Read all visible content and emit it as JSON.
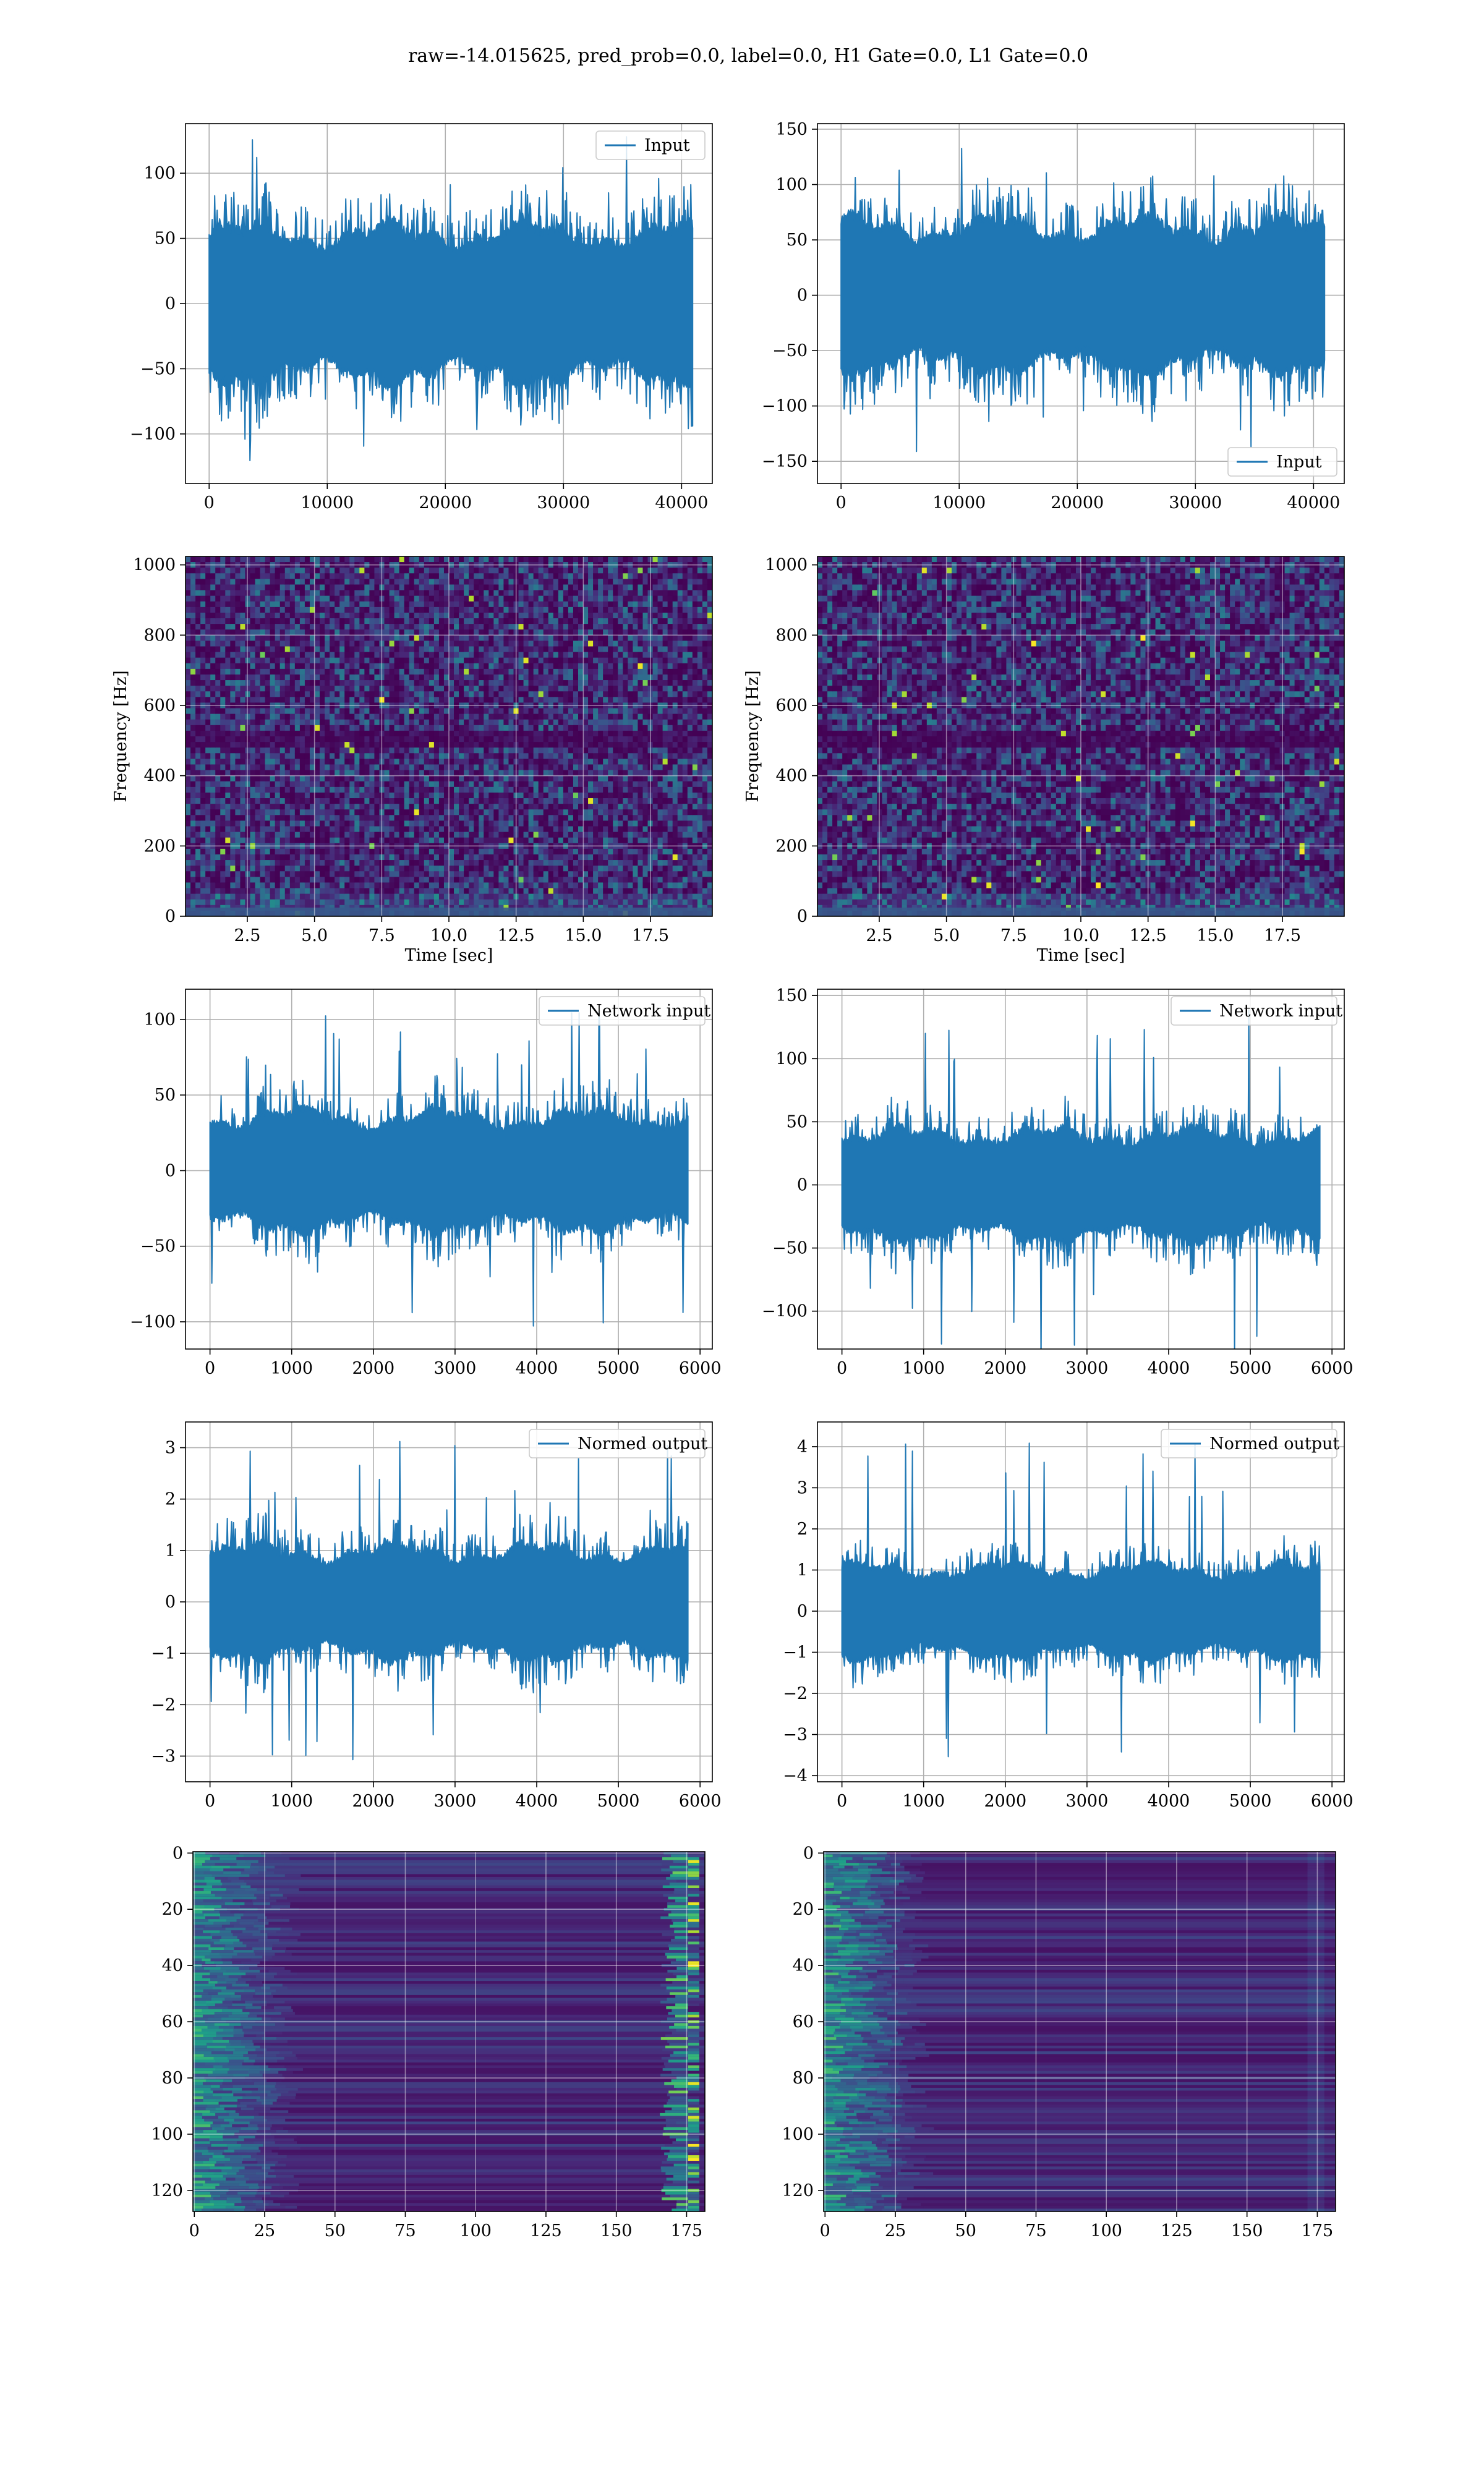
{
  "figure": {
    "title": "raw=-14.015625, pred_prob=0.0, label=0.0, H1 Gate=0.0, L1 Gate=0.0",
    "line_color": "#1f77b4"
  },
  "chart_data": [
    {
      "id": "r0c0",
      "type": "line",
      "series": [
        {
          "name": "Input"
        }
      ],
      "legend": "top-right",
      "xlim": [
        -2000,
        42600
      ],
      "ylim": [
        -138,
        138
      ],
      "xticks": [
        0,
        10000,
        20000,
        30000,
        40000
      ],
      "xtick_labels": [
        "0",
        "10000",
        "20000",
        "30000",
        "40000"
      ],
      "yticks": [
        -100,
        -50,
        0,
        50,
        100
      ],
      "ytick_labels": [
        "−100",
        "−50",
        "0",
        "50",
        "100"
      ],
      "x_start": 0,
      "x_end": 40959,
      "core_amp": 68,
      "peak_amp": 128,
      "grid": true,
      "xlabel": "",
      "ylabel": ""
    },
    {
      "id": "r0c1",
      "type": "line",
      "series": [
        {
          "name": "Input"
        }
      ],
      "legend": "bottom-right",
      "xlim": [
        -2000,
        42600
      ],
      "ylim": [
        -170,
        155
      ],
      "xticks": [
        0,
        10000,
        20000,
        30000,
        40000
      ],
      "xtick_labels": [
        "0",
        "10000",
        "20000",
        "30000",
        "40000"
      ],
      "yticks": [
        -150,
        -100,
        -50,
        0,
        50,
        100,
        150
      ],
      "ytick_labels": [
        "−150",
        "−100",
        "−50",
        "0",
        "50",
        "100",
        "150"
      ],
      "x_start": 0,
      "x_end": 40959,
      "core_amp": 78,
      "peak_amp": 148,
      "grid": true,
      "xlabel": "",
      "ylabel": ""
    },
    {
      "id": "r1c0",
      "type": "heatmap",
      "legend": "",
      "xlim": [
        0.2,
        19.8
      ],
      "ylim": [
        0,
        1024
      ],
      "xticks": [
        2.5,
        5.0,
        7.5,
        10.0,
        12.5,
        15.0,
        17.5
      ],
      "xtick_labels": [
        "2.5",
        "5.0",
        "7.5",
        "10.0",
        "12.5",
        "15.0",
        "17.5"
      ],
      "yticks": [
        0,
        200,
        400,
        600,
        800,
        1000
      ],
      "ytick_labels": [
        "0",
        "200",
        "400",
        "600",
        "800",
        "1000"
      ],
      "xlabel": "Time [sec]",
      "ylabel": "Frequency [Hz]",
      "grid": true,
      "colormap": "viridis",
      "style": "spectrogram"
    },
    {
      "id": "r1c1",
      "type": "heatmap",
      "legend": "",
      "xlim": [
        0.2,
        19.8
      ],
      "ylim": [
        0,
        1024
      ],
      "xticks": [
        2.5,
        5.0,
        7.5,
        10.0,
        12.5,
        15.0,
        17.5
      ],
      "xtick_labels": [
        "2.5",
        "5.0",
        "7.5",
        "10.0",
        "12.5",
        "15.0",
        "17.5"
      ],
      "yticks": [
        0,
        200,
        400,
        600,
        800,
        1000
      ],
      "ytick_labels": [
        "0",
        "200",
        "400",
        "600",
        "800",
        "1000"
      ],
      "xlabel": "Time [sec]",
      "ylabel": "Frequency [Hz]",
      "grid": true,
      "colormap": "viridis",
      "style": "spectrogram"
    },
    {
      "id": "r2c0",
      "type": "line",
      "series": [
        {
          "name": "Network input"
        }
      ],
      "legend": "top-right",
      "xlim": [
        -300,
        6150
      ],
      "ylim": [
        -118,
        120
      ],
      "xticks": [
        0,
        1000,
        2000,
        3000,
        4000,
        5000,
        6000
      ],
      "xtick_labels": [
        "0",
        "1000",
        "2000",
        "3000",
        "4000",
        "5000",
        "6000"
      ],
      "yticks": [
        -100,
        -50,
        0,
        50,
        100
      ],
      "ytick_labels": [
        "−100",
        "−50",
        "0",
        "50",
        "100"
      ],
      "x_start": 0,
      "x_end": 5850,
      "core_amp": 45,
      "peak_amp": 108,
      "grid": true,
      "xlabel": "",
      "ylabel": ""
    },
    {
      "id": "r2c1",
      "type": "line",
      "series": [
        {
          "name": "Network input"
        }
      ],
      "legend": "top-right",
      "xlim": [
        -300,
        6150
      ],
      "ylim": [
        -130,
        155
      ],
      "xticks": [
        0,
        1000,
        2000,
        3000,
        4000,
        5000,
        6000
      ],
      "xtick_labels": [
        "0",
        "1000",
        "2000",
        "3000",
        "4000",
        "5000",
        "6000"
      ],
      "yticks": [
        -100,
        -50,
        0,
        50,
        100,
        150
      ],
      "ytick_labels": [
        "−100",
        "−50",
        "0",
        "50",
        "100",
        "150"
      ],
      "x_start": 0,
      "x_end": 5850,
      "core_amp": 50,
      "peak_amp": 145,
      "grid": true,
      "xlabel": "",
      "ylabel": ""
    },
    {
      "id": "r3c0",
      "type": "line",
      "series": [
        {
          "name": "Normed output"
        }
      ],
      "legend": "top-right",
      "xlim": [
        -300,
        6150
      ],
      "ylim": [
        -3.5,
        3.5
      ],
      "xticks": [
        0,
        1000,
        2000,
        3000,
        4000,
        5000,
        6000
      ],
      "xtick_labels": [
        "0",
        "1000",
        "2000",
        "3000",
        "4000",
        "5000",
        "6000"
      ],
      "yticks": [
        -3,
        -2,
        -1,
        0,
        1,
        2,
        3
      ],
      "ytick_labels": [
        "−3",
        "−2",
        "−1",
        "0",
        "1",
        "2",
        "3"
      ],
      "x_start": 0,
      "x_end": 5850,
      "core_amp": 1.25,
      "peak_amp": 3.2,
      "grid": true,
      "xlabel": "",
      "ylabel": ""
    },
    {
      "id": "r3c1",
      "type": "line",
      "series": [
        {
          "name": "Normed output"
        }
      ],
      "legend": "top-right",
      "xlim": [
        -300,
        6150
      ],
      "ylim": [
        -4.15,
        4.6
      ],
      "xticks": [
        0,
        1000,
        2000,
        3000,
        4000,
        5000,
        6000
      ],
      "xtick_labels": [
        "0",
        "1000",
        "2000",
        "3000",
        "4000",
        "5000",
        "6000"
      ],
      "yticks": [
        -4,
        -3,
        -2,
        -1,
        0,
        1,
        2,
        3,
        4
      ],
      "ytick_labels": [
        "−4",
        "−3",
        "−2",
        "−1",
        "0",
        "1",
        "2",
        "3",
        "4"
      ],
      "x_start": 0,
      "x_end": 5850,
      "core_amp": 1.3,
      "peak_amp": 4.2,
      "grid": true,
      "xlabel": "",
      "ylabel": ""
    },
    {
      "id": "r4c0",
      "type": "heatmap",
      "legend": "",
      "xlim": [
        -0.5,
        181.5
      ],
      "ylim": [
        127.5,
        -0.5
      ],
      "xticks": [
        0,
        25,
        50,
        75,
        100,
        125,
        150,
        175
      ],
      "xtick_labels": [
        "0",
        "25",
        "50",
        "75",
        "100",
        "125",
        "150",
        "175"
      ],
      "yticks": [
        0,
        20,
        40,
        60,
        80,
        100,
        120
      ],
      "ytick_labels": [
        "0",
        "20",
        "40",
        "60",
        "80",
        "100",
        "120"
      ],
      "xlabel": "",
      "ylabel": "",
      "grid": true,
      "colormap": "viridis",
      "style": "features-left-right"
    },
    {
      "id": "r4c1",
      "type": "heatmap",
      "legend": "",
      "xlim": [
        -0.5,
        181.5
      ],
      "ylim": [
        127.5,
        -0.5
      ],
      "xticks": [
        0,
        25,
        50,
        75,
        100,
        125,
        150,
        175
      ],
      "xtick_labels": [
        "0",
        "25",
        "50",
        "75",
        "100",
        "125",
        "150",
        "175"
      ],
      "yticks": [
        0,
        20,
        40,
        60,
        80,
        100,
        120
      ],
      "ytick_labels": [
        "0",
        "20",
        "40",
        "60",
        "80",
        "100",
        "120"
      ],
      "xlabel": "",
      "ylabel": "",
      "grid": true,
      "colormap": "viridis",
      "style": "features-left"
    }
  ]
}
